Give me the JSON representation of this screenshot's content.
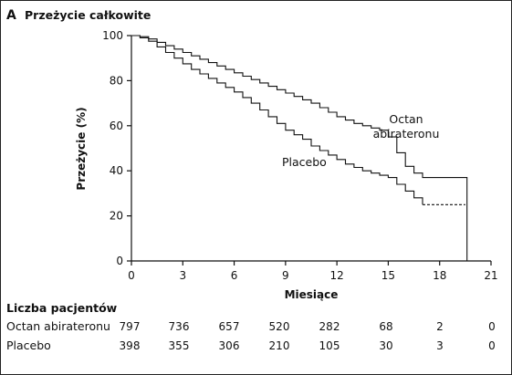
{
  "panel": {
    "letter": "A",
    "title": "Przeżycie całkowite"
  },
  "chart_data": {
    "type": "line",
    "title": "Przeżycie całkowite",
    "xlabel": "Miesiące",
    "ylabel": "Przeżycie (%)",
    "xlim": [
      0,
      21
    ],
    "ylim": [
      0,
      100
    ],
    "xticks": [
      "0",
      "3",
      "6",
      "9",
      "12",
      "15",
      "18",
      "21"
    ],
    "yticks": [
      "0",
      "20",
      "40",
      "60",
      "80",
      "100"
    ],
    "grid": false,
    "series": [
      {
        "name": "Octan abirateronu",
        "label_lines": [
          "Octan",
          "abirateronu"
        ],
        "style": "solid",
        "x": [
          0,
          0.5,
          1,
          1.5,
          2,
          2.5,
          3,
          3.5,
          4,
          4.5,
          5,
          5.5,
          6,
          6.5,
          7,
          7.5,
          8,
          8.5,
          9,
          9.5,
          10,
          10.5,
          11,
          11.5,
          12,
          12.5,
          13,
          13.5,
          14,
          14.5,
          15,
          15.5,
          16,
          16.5,
          17,
          17.5,
          18,
          18.5,
          19,
          19.5,
          19.6
        ],
        "y": [
          100,
          99.5,
          98.5,
          97,
          95.5,
          94,
          92.5,
          91,
          89.5,
          88,
          86.5,
          85,
          83.5,
          82,
          80.5,
          79,
          77.5,
          76,
          74.5,
          73,
          71.5,
          70,
          68,
          66,
          64,
          62.5,
          61,
          60,
          59,
          58,
          55,
          48,
          42,
          39,
          37,
          37,
          37,
          37,
          37,
          37,
          0
        ]
      },
      {
        "name": "Placebo",
        "label_lines": [
          "Placebo"
        ],
        "style": "solid-then-dashed",
        "x": [
          0,
          0.5,
          1,
          1.5,
          2,
          2.5,
          3,
          3.5,
          4,
          4.5,
          5,
          5.5,
          6,
          6.5,
          7,
          7.5,
          8,
          8.5,
          9,
          9.5,
          10,
          10.5,
          11,
          11.5,
          12,
          12.5,
          13,
          13.5,
          14,
          14.5,
          15,
          15.5,
          16,
          16.5,
          17,
          17.5,
          18,
          18.5,
          19,
          19.5
        ],
        "y": [
          100,
          99,
          97.5,
          95,
          92.5,
          90,
          87.5,
          85,
          83,
          81,
          79,
          77,
          75,
          72.5,
          70,
          67,
          64,
          61,
          58,
          56,
          54,
          51,
          49,
          47,
          45,
          43,
          41.5,
          40,
          39,
          38,
          37,
          34,
          31,
          28,
          25,
          25,
          25,
          25,
          25,
          25
        ],
        "dashed_from_x": 17
      }
    ]
  },
  "risk_table": {
    "title": "Liczba pacjentów",
    "rows": [
      {
        "name": "Octan abirateronu",
        "values": [
          "797",
          "736",
          "657",
          "520",
          "282",
          "68",
          "2",
          "0"
        ]
      },
      {
        "name": "Placebo",
        "values": [
          "398",
          "355",
          "306",
          "210",
          "105",
          "30",
          "3",
          "0"
        ]
      }
    ]
  }
}
